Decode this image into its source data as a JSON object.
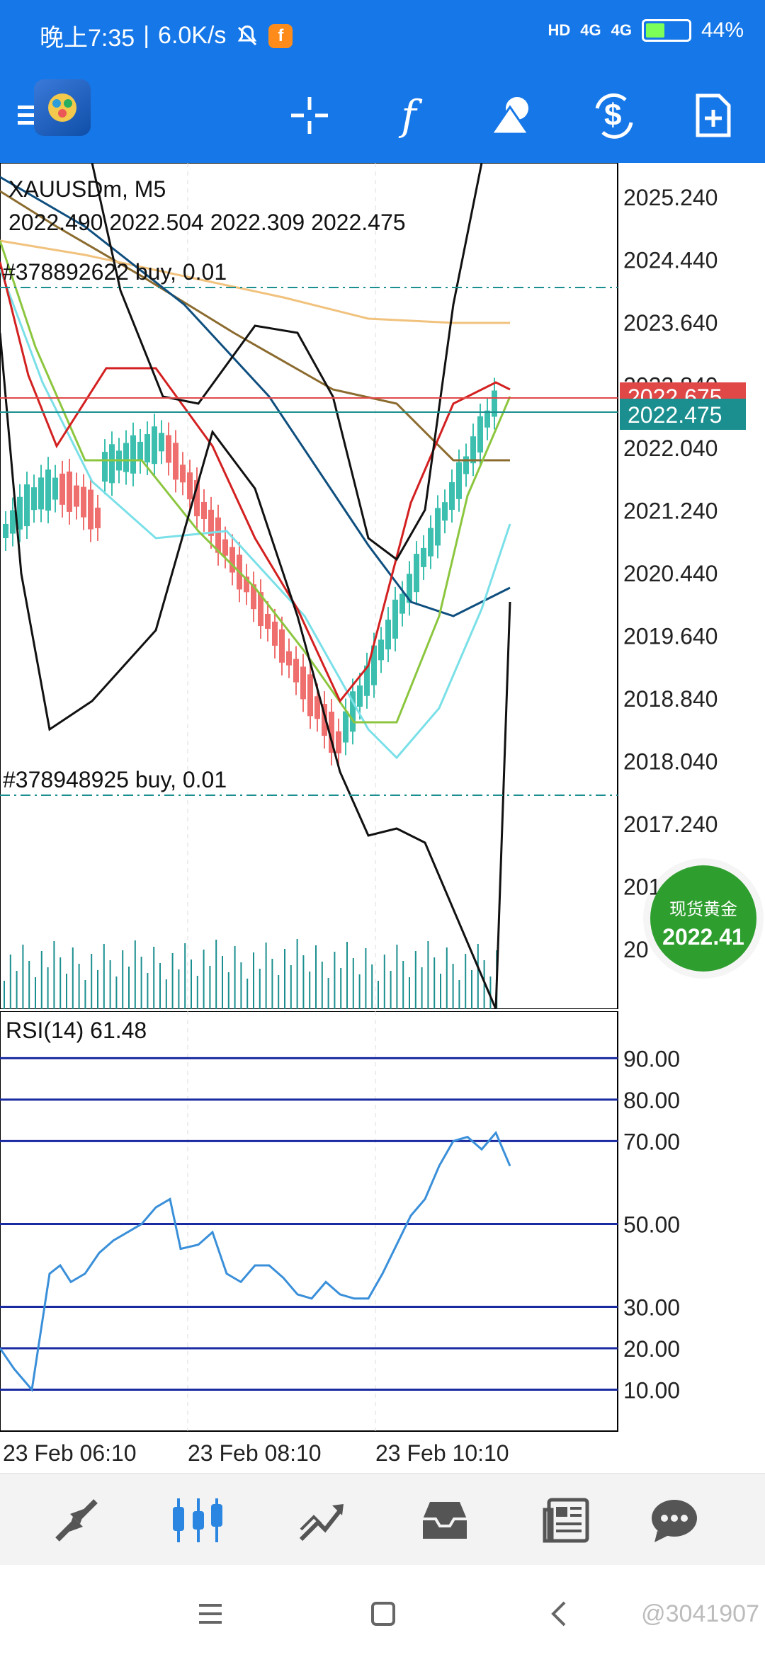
{
  "status_bar": {
    "time": "晚上7:35",
    "speed": "6.0K/s",
    "battery": "44%",
    "battery_level": 0.44,
    "network_1": "4G",
    "network_2": "4G",
    "hd": "HD"
  },
  "toolbar": {
    "icons": [
      "menu-icon",
      "app-logo",
      "crosshair-icon",
      "function-icon",
      "objects-icon",
      "trade-icon",
      "new-order-icon"
    ],
    "color": "#1677e8"
  },
  "chart": {
    "symbol_line": "XAUUSDm, M5",
    "ohlc_line": "2022.490 2022.504 2022.309 2022.475",
    "order_top": "#378892622 buy, 0.01",
    "order_bottom": "#378948925 buy, 0.01",
    "bid_price_label": "2022.475",
    "ask_price_label": "2022.675",
    "price_axis": [
      "2025.240",
      "2024.440",
      "2023.640",
      "2022.840",
      "2022.040",
      "2021.240",
      "2020.440",
      "2019.640",
      "2018.840",
      "2018.040",
      "2017.240",
      "201",
      "20"
    ],
    "bid_color": "#1b8f8f",
    "ask_color": "#e04848"
  },
  "rsi": {
    "label": "RSI(14) 61.48",
    "levels": [
      "90.00",
      "80.00",
      "70.00",
      "50.00",
      "30.00",
      "20.00",
      "10.00"
    ]
  },
  "time_axis": [
    "23 Feb 06:10",
    "23 Feb 08:10",
    "23 Feb 10:10"
  ],
  "gold_badge": {
    "title": "现货黄金",
    "price": "2022.41"
  },
  "bottom_nav": [
    "quotes-icon",
    "chart-icon",
    "trade-icon",
    "history-icon",
    "news-icon",
    "messages-icon"
  ],
  "watermark": "@3041907"
}
